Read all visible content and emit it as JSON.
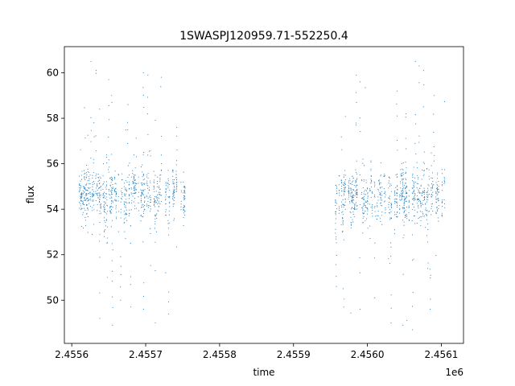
{
  "chart_data": {
    "type": "scatter",
    "title": "1SWASPJ120959.71-552250.4",
    "xlabel": "time",
    "ylabel": "flux",
    "x_offset_label": "1e6",
    "xlim": [
      2455590,
      2456130
    ],
    "ylim": [
      48.1,
      61.15
    ],
    "x_ticks": [
      2455600,
      2455700,
      2455800,
      2455900,
      2456000,
      2456100
    ],
    "x_tick_labels": [
      "2.4556",
      "2.4557",
      "2.4558",
      "2.4559",
      "2.4560",
      "2.4561"
    ],
    "y_ticks": [
      50,
      52,
      54,
      56,
      58,
      60
    ],
    "y_tick_labels": [
      "50",
      "52",
      "54",
      "56",
      "58",
      "60"
    ],
    "grid": false,
    "marker_color": "#1f77b4",
    "observing_segments": [
      {
        "x_start": 2455610,
        "x_end": 2455755,
        "median_flux": 54.6,
        "scatter": 0.5
      },
      {
        "x_start": 2455955,
        "x_end": 2456108,
        "median_flux": 54.6,
        "scatter": 0.5
      }
    ],
    "outlier_points": [
      {
        "x": 2455626,
        "y": 60.5
      },
      {
        "x": 2455633,
        "y": 60.1
      },
      {
        "x": 2455650,
        "y": 59.7
      },
      {
        "x": 2455654,
        "y": 59.0
      },
      {
        "x": 2455676,
        "y": 58.6
      },
      {
        "x": 2455697,
        "y": 60.0
      },
      {
        "x": 2455703,
        "y": 59.9
      },
      {
        "x": 2455721,
        "y": 59.8
      },
      {
        "x": 2455742,
        "y": 57.6
      },
      {
        "x": 2455630,
        "y": 57.8
      },
      {
        "x": 2455648,
        "y": 51.0
      },
      {
        "x": 2455638,
        "y": 49.2
      },
      {
        "x": 2455655,
        "y": 48.9
      },
      {
        "x": 2455680,
        "y": 49.7
      },
      {
        "x": 2455697,
        "y": 49.6
      },
      {
        "x": 2455713,
        "y": 49.0
      },
      {
        "x": 2455731,
        "y": 49.4
      },
      {
        "x": 2455666,
        "y": 50.0
      },
      {
        "x": 2455985,
        "y": 59.9
      },
      {
        "x": 2455990,
        "y": 59.6
      },
      {
        "x": 2456040,
        "y": 59.2
      },
      {
        "x": 2456065,
        "y": 60.5
      },
      {
        "x": 2456070,
        "y": 60.3
      },
      {
        "x": 2456076,
        "y": 60.1
      },
      {
        "x": 2456090,
        "y": 59.0
      },
      {
        "x": 2456052,
        "y": 58.2
      },
      {
        "x": 2455968,
        "y": 49.7
      },
      {
        "x": 2455990,
        "y": 49.6
      },
      {
        "x": 2456032,
        "y": 49.0
      },
      {
        "x": 2456048,
        "y": 48.9
      },
      {
        "x": 2456061,
        "y": 48.7
      },
      {
        "x": 2456085,
        "y": 49.6
      },
      {
        "x": 2456010,
        "y": 50.1
      },
      {
        "x": 2455958,
        "y": 50.6
      }
    ]
  }
}
